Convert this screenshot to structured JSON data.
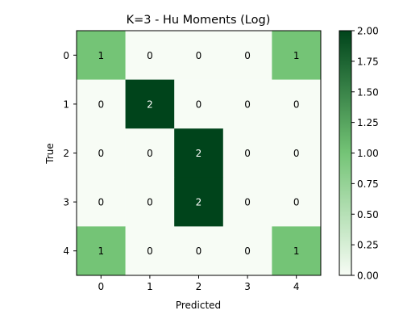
{
  "chart_data": {
    "type": "heatmap",
    "title": "K=3 - Hu Moments (Log)",
    "xlabel": "Predicted",
    "ylabel": "True",
    "x_categories": [
      "0",
      "1",
      "2",
      "3",
      "4"
    ],
    "y_categories": [
      "0",
      "1",
      "2",
      "3",
      "4"
    ],
    "matrix": [
      [
        1,
        0,
        0,
        0,
        1
      ],
      [
        0,
        2,
        0,
        0,
        0
      ],
      [
        0,
        0,
        2,
        0,
        0
      ],
      [
        0,
        0,
        2,
        0,
        0
      ],
      [
        1,
        0,
        0,
        0,
        1
      ]
    ],
    "value_range": [
      0,
      2
    ],
    "colormap": "Greens",
    "colorbar_ticks": [
      "0.00",
      "0.25",
      "0.50",
      "0.75",
      "1.00",
      "1.25",
      "1.50",
      "1.75",
      "2.00"
    ],
    "colors": {
      "low": "#f7fcf5",
      "mid": "#74c476",
      "high": "#00441b"
    },
    "grid": false,
    "colorbar": "right"
  }
}
